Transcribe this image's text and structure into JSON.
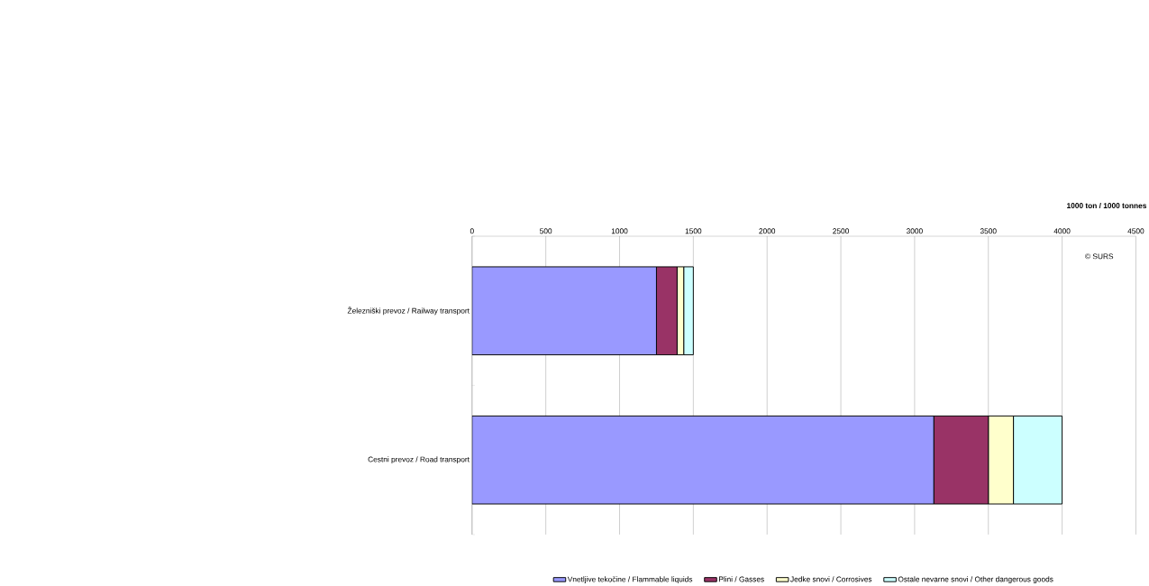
{
  "chart_data": {
    "type": "bar",
    "orientation": "horizontal",
    "stacked": true,
    "xlabel": "**1000 ton / 1000 tonnes**",
    "categories": [
      "Železniški prevoz / Railway transport",
      "Cestni prevoz / Road transport"
    ],
    "series": [
      {
        "name": "Vnetljive tekočine / Flammable liquids",
        "color": "#9999ff",
        "values": [
          1250,
          3130
        ]
      },
      {
        "name": "Plini / Gasses",
        "color": "#993366",
        "values": [
          140,
          370
        ]
      },
      {
        "name": "Jedke snovi / Corrosives",
        "color": "#ffffcc",
        "values": [
          45,
          170
        ]
      },
      {
        "name": "Ostale nevarne snovi / Other dangerous goods",
        "color": "#ccffff",
        "values": [
          65,
          330
        ]
      }
    ],
    "xlim": [
      0,
      4500
    ],
    "xticks": [
      0,
      500,
      1000,
      1500,
      2000,
      2500,
      3000,
      3500,
      4000,
      4500
    ],
    "grid": "x",
    "legend": "bottom",
    "annotations": [
      "© SURS"
    ]
  }
}
